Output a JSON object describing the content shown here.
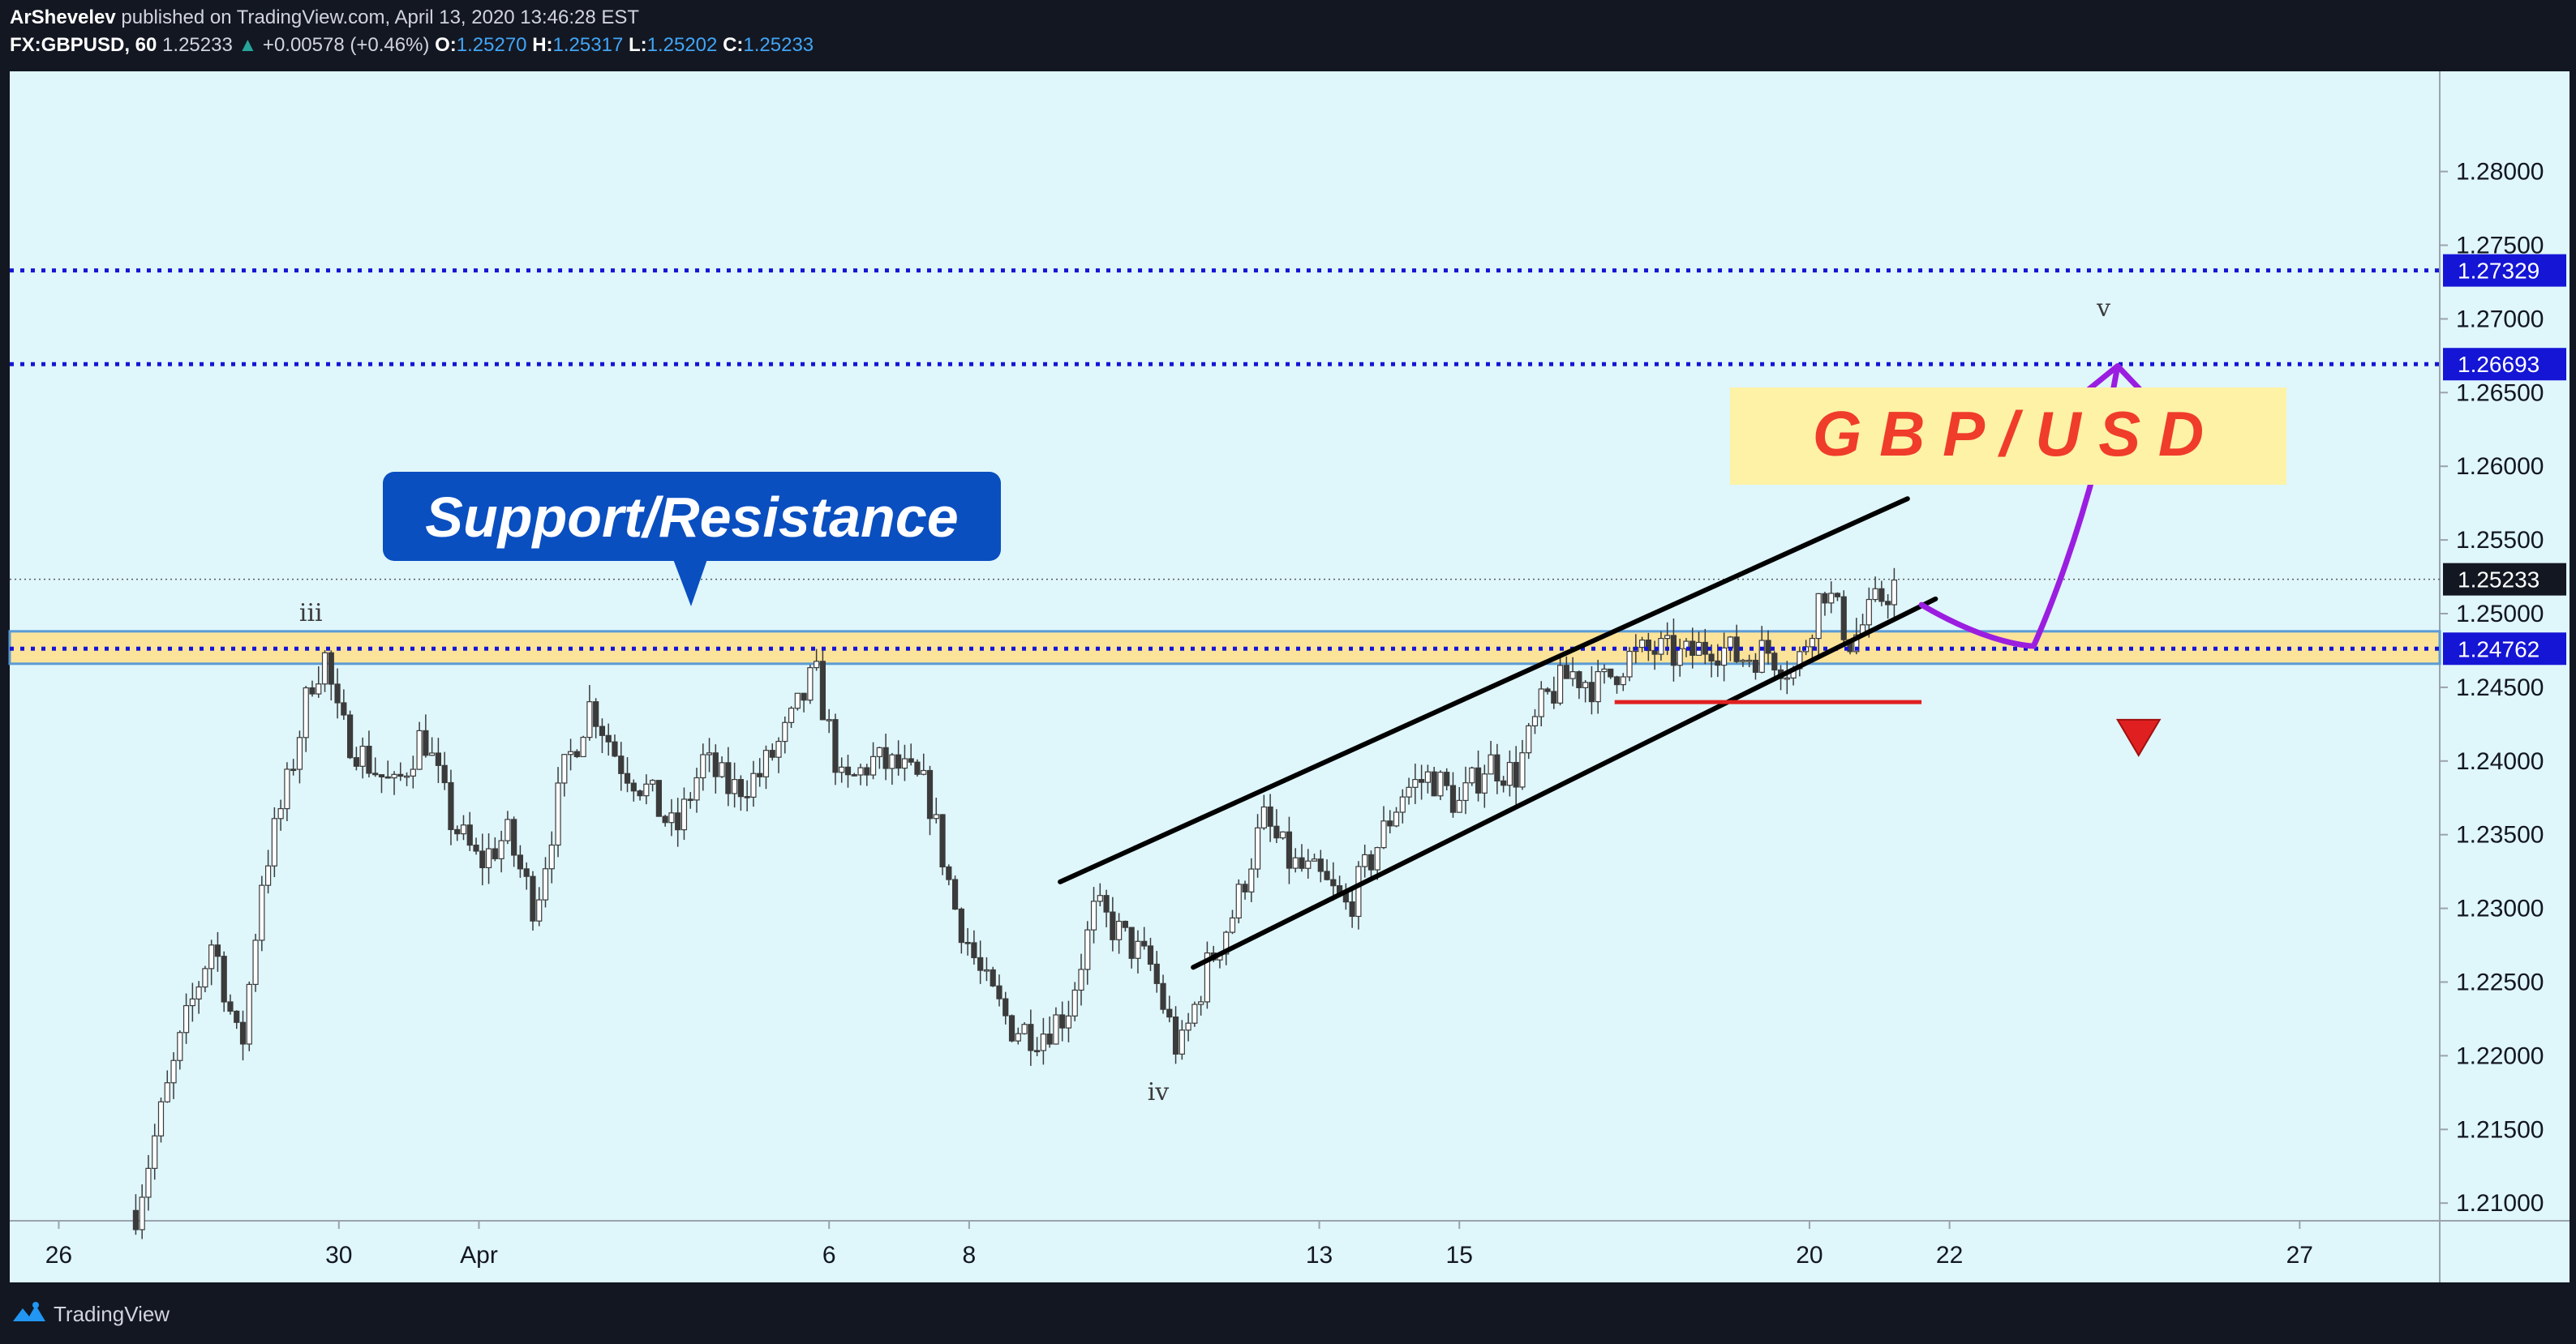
{
  "header": {
    "author": "ArShevelev",
    "published": "published on TradingView.com, April 13, 2020 13:46:28 EST",
    "symbol": "FX:GBPUSD, 60",
    "last": "1.25233",
    "change_arrow": "▲",
    "change": "+0.00578 (+0.46%)",
    "o_label": "O:",
    "o_value": "1.25270",
    "h_label": "H:",
    "h_value": "1.25317",
    "l_label": "L:",
    "l_value": "1.25202",
    "c_label": "C:",
    "c_value": "1.25233"
  },
  "footer": {
    "brand": "TradingView",
    "logo_icon": "tradingview-logo-icon"
  },
  "colors": {
    "background": "#dff6fb",
    "zone_fill": "#fbe39a",
    "zone_border": "#5b9bd5",
    "level_line": "#1515d6",
    "channel": "#000000",
    "forecast": "#9b1ee0",
    "stop": "#e02020",
    "title_text": "#f03c2a",
    "title_box": "#fdf2a6",
    "callout_box": "#0a4fc0"
  },
  "chart_data": {
    "type": "candlestick",
    "interval": "60",
    "x_ticks": [
      {
        "label": "26",
        "day": 26
      },
      {
        "label": "30",
        "day": 30
      },
      {
        "label": "Apr",
        "day": 32
      },
      {
        "label": "6",
        "day": 37
      },
      {
        "label": "8",
        "day": 39
      },
      {
        "label": "13",
        "day": 44
      },
      {
        "label": "15",
        "day": 46
      },
      {
        "label": "20",
        "day": 51
      },
      {
        "label": "22",
        "day": 53
      },
      {
        "label": "27",
        "day": 58
      }
    ],
    "x_range": [
      25.3,
      60.0
    ],
    "y_ticks": [
      "1.28000",
      "1.27500",
      "1.27000",
      "1.26500",
      "1.26000",
      "1.25500",
      "1.25000",
      "1.24500",
      "1.24000",
      "1.23500",
      "1.23000",
      "1.22500",
      "1.22000",
      "1.21500",
      "1.21000"
    ],
    "ylim": [
      1.2088,
      1.2868
    ],
    "price_profile": [
      [
        27.1,
        1.2095
      ],
      [
        27.4,
        1.215
      ],
      [
        27.8,
        1.222
      ],
      [
        28.2,
        1.228
      ],
      [
        28.6,
        1.22
      ],
      [
        28.9,
        1.232
      ],
      [
        29.3,
        1.239
      ],
      [
        29.6,
        1.2455
      ],
      [
        29.8,
        1.247
      ],
      [
        30.0,
        1.2425
      ],
      [
        30.4,
        1.24
      ],
      [
        30.8,
        1.238
      ],
      [
        31.2,
        1.242
      ],
      [
        31.6,
        1.236
      ],
      [
        32.0,
        1.233
      ],
      [
        32.4,
        1.235
      ],
      [
        32.8,
        1.23
      ],
      [
        33.2,
        1.239
      ],
      [
        33.6,
        1.244
      ],
      [
        34.0,
        1.24
      ],
      [
        34.4,
        1.238
      ],
      [
        34.8,
        1.235
      ],
      [
        35.2,
        1.24
      ],
      [
        35.6,
        1.238
      ],
      [
        36.0,
        1.239
      ],
      [
        36.4,
        1.242
      ],
      [
        36.8,
        1.246
      ],
      [
        37.2,
        1.238
      ],
      [
        37.6,
        1.24
      ],
      [
        38.0,
        1.2395
      ],
      [
        38.4,
        1.238
      ],
      [
        38.8,
        1.23
      ],
      [
        39.2,
        1.225
      ],
      [
        39.6,
        1.222
      ],
      [
        40.0,
        1.2215
      ],
      [
        40.4,
        1.223
      ],
      [
        40.8,
        1.23
      ],
      [
        41.2,
        1.228
      ],
      [
        41.6,
        1.226
      ],
      [
        42.0,
        1.22
      ],
      [
        42.4,
        1.226
      ],
      [
        42.8,
        1.23
      ],
      [
        43.2,
        1.236
      ],
      [
        43.6,
        1.233
      ],
      [
        44.0,
        1.232
      ],
      [
        44.4,
        1.23
      ],
      [
        44.8,
        1.234
      ],
      [
        45.2,
        1.238
      ],
      [
        45.6,
        1.239
      ],
      [
        46.0,
        1.237
      ],
      [
        46.4,
        1.24
      ],
      [
        46.8,
        1.239
      ],
      [
        47.2,
        1.244
      ],
      [
        47.6,
        1.246
      ],
      [
        48.0,
        1.245
      ],
      [
        48.4,
        1.247
      ],
      [
        48.8,
        1.2475
      ],
      [
        49.2,
        1.247
      ],
      [
        49.6,
        1.248
      ],
      [
        50.0,
        1.247
      ],
      [
        50.4,
        1.2475
      ],
      [
        50.8,
        1.246
      ],
      [
        51.2,
        1.252
      ],
      [
        51.6,
        1.248
      ],
      [
        52.0,
        1.251
      ],
      [
        52.3,
        1.2523
      ]
    ],
    "horizontal_levels": [
      {
        "price": 1.27329,
        "label": "1.27329",
        "style": "dotted"
      },
      {
        "price": 1.26693,
        "label": "1.26693",
        "style": "dotted"
      },
      {
        "price": 1.24762,
        "label": "1.24762",
        "style": "dotted"
      },
      {
        "price": 1.25233,
        "label": "1.25233",
        "style": "last-price"
      }
    ],
    "zone": {
      "from": 1.2466,
      "to": 1.2488
    },
    "channel": [
      {
        "from": [
          40.3,
          1.2318
        ],
        "to": [
          52.4,
          1.2578
        ]
      },
      {
        "from": [
          42.2,
          1.226
        ],
        "to": [
          52.8,
          1.251
        ]
      }
    ],
    "forecast_path": [
      [
        52.6,
        1.2506
      ],
      [
        53.6,
        1.2478
      ],
      [
        54.2,
        1.2478
      ],
      [
        55.0,
        1.256
      ],
      [
        55.4,
        1.2668
      ]
    ],
    "stop_line": {
      "price": 1.244,
      "from": 52.6,
      "to": 59.8
    },
    "annotations": [
      {
        "text": "iii",
        "day": 29.6,
        "price": 1.2495
      },
      {
        "text": "iv",
        "day": 41.7,
        "price": 1.217
      },
      {
        "text": "v",
        "day": 55.2,
        "price": 1.2702
      }
    ],
    "title_box": {
      "text": "G B P / U S D"
    },
    "callout": {
      "text": "Support/Resistance"
    }
  }
}
